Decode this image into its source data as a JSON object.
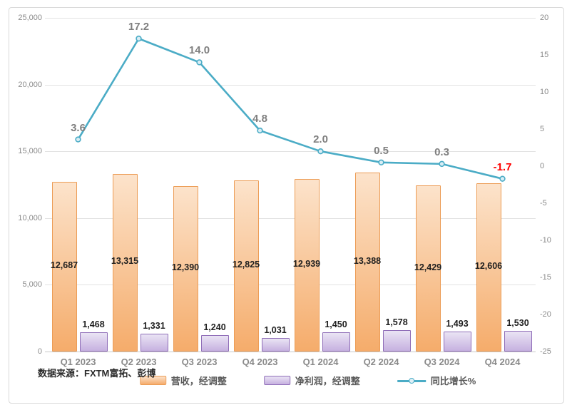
{
  "source_note": "数据来源：FXTM富拓、彭博",
  "colors": {
    "revenue_fill_top": "#fce3cb",
    "revenue_fill_bottom": "#f5ac6b",
    "revenue_border": "#ec9c55",
    "profit_fill_top": "#eae4f4",
    "profit_fill_bottom": "#c6b1e0",
    "profit_border": "#8f6db8",
    "line": "#4bacc6",
    "marker_fill": "#d9edf5",
    "line_label": "#7f7f7f",
    "line_label_negative": "#ff0000",
    "bar_label": "#1f1f1f",
    "axis_text": "#8a8a8a"
  },
  "chart_data": {
    "type": "combo",
    "title": "",
    "categories": [
      "Q1 2023",
      "Q2 2023",
      "Q3 2023",
      "Q4 2023",
      "Q1 2024",
      "Q2 2024",
      "Q3 2024",
      "Q4 2024"
    ],
    "series": [
      {
        "name": "营收，经调整",
        "type": "bar",
        "axis": "left",
        "values": [
          12687,
          13315,
          12390,
          12825,
          12939,
          13388,
          12429,
          12606
        ],
        "labels": [
          "12,687",
          "13,315",
          "12,390",
          "12,825",
          "12,939",
          "13,388",
          "12,429",
          "12,606"
        ]
      },
      {
        "name": "净利润，经调整",
        "type": "bar",
        "axis": "left",
        "values": [
          1468,
          1331,
          1240,
          1031,
          1450,
          1578,
          1493,
          1530
        ],
        "labels": [
          "1,468",
          "1,331",
          "1,240",
          "1,031",
          "1,450",
          "1,578",
          "1,493",
          "1,530"
        ]
      },
      {
        "name": "同比增长%",
        "type": "line",
        "axis": "right",
        "values": [
          3.6,
          17.2,
          14.0,
          4.8,
          2.0,
          0.5,
          0.3,
          -1.7
        ],
        "labels": [
          "3.6",
          "17.2",
          "14.0",
          "4.8",
          "2.0",
          "0.5",
          "0.3",
          "-1.7"
        ]
      }
    ],
    "left_axis": {
      "min": 0,
      "max": 25000,
      "step": 5000,
      "tick_labels_top_to_bottom": [
        "25,000",
        "20,000",
        "15,000",
        "10,000",
        "5,000",
        "0"
      ]
    },
    "right_axis": {
      "min": -25,
      "max": 20,
      "step": 5,
      "tick_labels_top_to_bottom": [
        "20",
        "15",
        "10",
        "5",
        "0",
        "-5",
        "-10",
        "-15",
        "-20",
        "-25"
      ]
    },
    "grid": true,
    "legend_position": "bottom"
  }
}
